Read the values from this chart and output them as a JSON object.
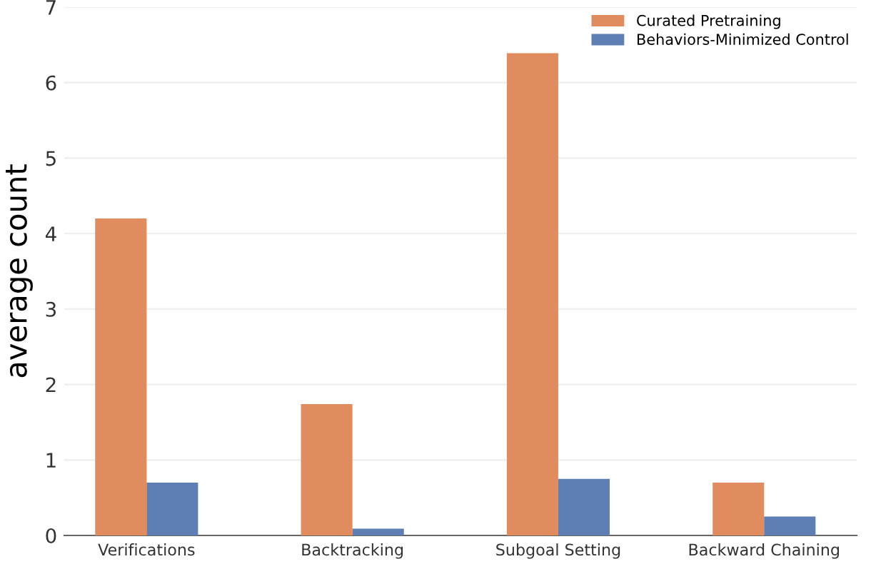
{
  "chart_data": {
    "type": "bar",
    "ylabel": "average count",
    "categories": [
      "Verifications",
      "Backtracking",
      "Subgoal Setting",
      "Backward Chaining"
    ],
    "series": [
      {
        "name": "Curated Pretraining",
        "color": "#e08c5e",
        "values": [
          4.2,
          1.74,
          6.39,
          0.7
        ]
      },
      {
        "name": "Behaviors-Minimized Control",
        "color": "#5f7fb4",
        "values": [
          0.7,
          0.09,
          0.75,
          0.25
        ]
      }
    ],
    "ylim": [
      0,
      7
    ],
    "yticks": [
      0,
      1,
      2,
      3,
      4,
      5,
      6,
      7
    ],
    "grid": "y",
    "legend": "top right"
  }
}
